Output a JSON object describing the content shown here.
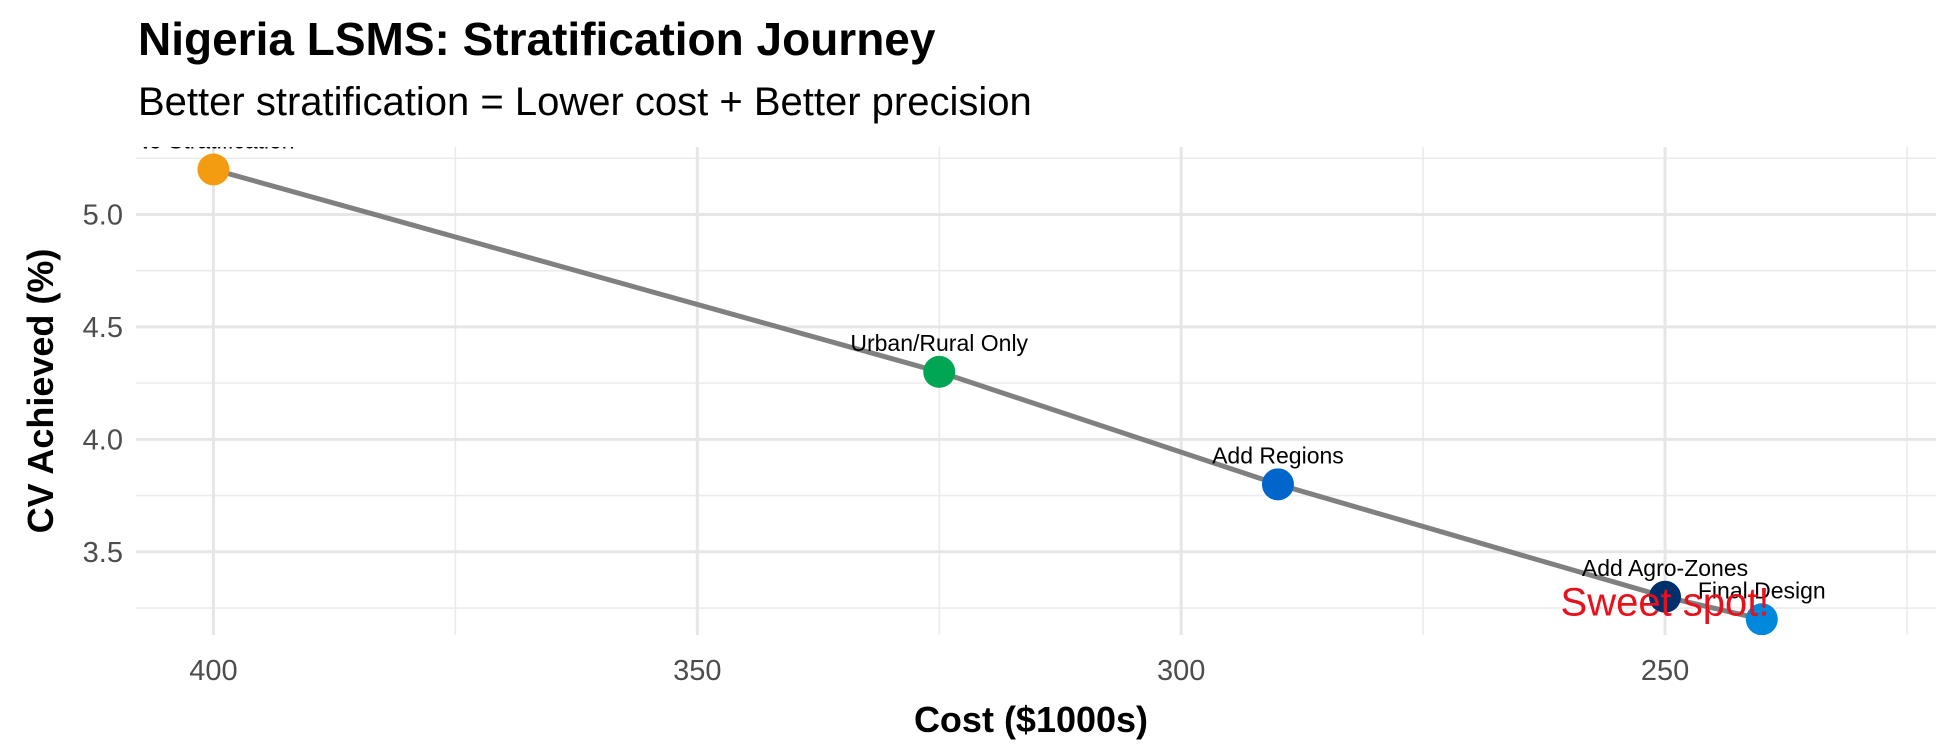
{
  "chart_data": {
    "type": "line",
    "title": "Nigeria LSMS: Stratification Journey",
    "subtitle": "Better stratification = Lower cost + Better precision",
    "xlabel": "Cost ($1000s)",
    "ylabel": "CV Achieved (%)",
    "xlim": [
      408,
      222
    ],
    "ylim": [
      3.13,
      5.3
    ],
    "x_reversed": true,
    "x_ticks": [
      400,
      350,
      300,
      250
    ],
    "y_ticks": [
      3.5,
      4.0,
      4.5,
      5.0
    ],
    "grid": true,
    "line_color": "#808080",
    "points": [
      {
        "label": "No Stratification",
        "x": 400,
        "y": 5.2,
        "color": "#F39C12"
      },
      {
        "label": "Urban/Rural Only",
        "x": 325,
        "y": 4.3,
        "color": "#00A651"
      },
      {
        "label": "Add Regions",
        "x": 290,
        "y": 3.8,
        "color": "#0066CC"
      },
      {
        "label": "Add Agro-Zones",
        "x": 250,
        "y": 3.3,
        "color": "#002F6C"
      },
      {
        "label": "Final Design",
        "x": 240,
        "y": 3.2,
        "color": "#0088DD"
      }
    ],
    "annotation": {
      "text": "Sweet spot!",
      "x": 250,
      "y": 3.28,
      "color": "#E8101A"
    }
  }
}
